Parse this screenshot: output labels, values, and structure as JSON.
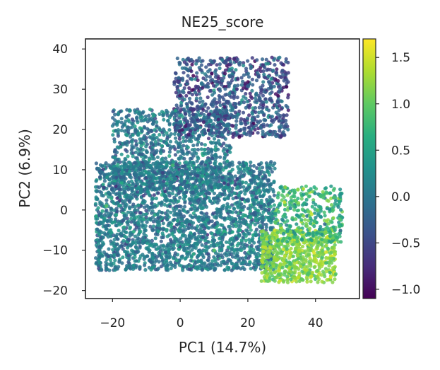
{
  "chart_data": {
    "type": "scatter",
    "title": "NE25_score",
    "xlabel": "PC1 (14.7%)",
    "ylabel": "PC2 (6.9%)",
    "xlim": [
      -28,
      53
    ],
    "ylim": [
      -22,
      42.5
    ],
    "xticks": [
      -20,
      0,
      20,
      40
    ],
    "yticks": [
      -20,
      -10,
      0,
      10,
      20,
      30,
      40
    ],
    "xtick_labels": [
      "−20",
      "0",
      "20",
      "40"
    ],
    "ytick_labels": [
      "−20",
      "−10",
      "0",
      "10",
      "20",
      "30",
      "40"
    ],
    "grid": false,
    "colorbar": {
      "colormap": "viridis",
      "range": [
        -1.1,
        1.7
      ],
      "ticks": [
        -1.0,
        -0.5,
        0.0,
        0.5,
        1.0,
        1.5
      ],
      "tick_labels": [
        "−1.0",
        "−0.5",
        "0.0",
        "0.5",
        "1.0",
        "1.5"
      ]
    },
    "regions": [
      {
        "x_range": [
          -25,
          28
        ],
        "y_range": [
          -15,
          12
        ],
        "score_mean": 0.05,
        "score_sd": 0.25
      },
      {
        "x_range": [
          -20,
          15
        ],
        "y_range": [
          5,
          25
        ],
        "score_mean": 0.0,
        "score_sd": 0.25
      },
      {
        "x_range": [
          -2,
          32
        ],
        "y_range": [
          18,
          38
        ],
        "score_mean": -0.35,
        "score_sd": 0.3
      },
      {
        "x_range": [
          24,
          46
        ],
        "y_range": [
          -18,
          -5
        ],
        "score_mean": 1.15,
        "score_sd": 0.18
      },
      {
        "x_range": [
          28,
          48
        ],
        "y_range": [
          -8,
          6
        ],
        "score_mean": 0.7,
        "score_sd": 0.3
      }
    ]
  }
}
